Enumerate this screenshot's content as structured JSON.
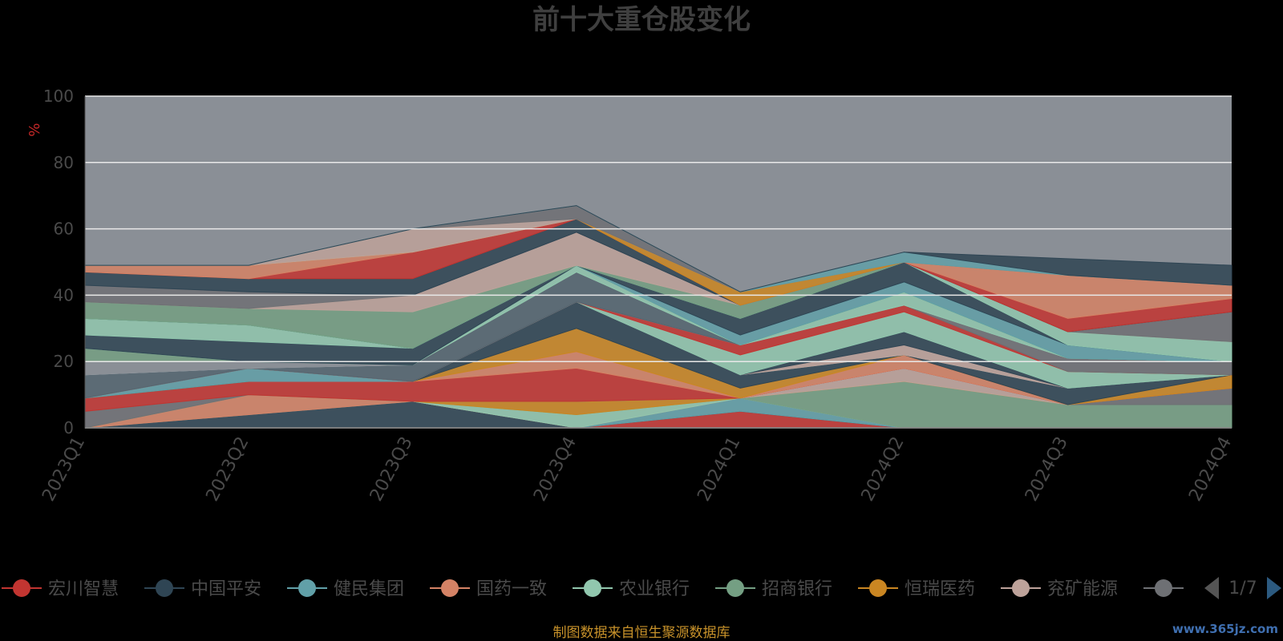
{
  "chart_data": {
    "type": "area",
    "title": "前十大重仓股变化",
    "unit_label": "%",
    "categories": [
      "2023Q1",
      "2023Q2",
      "2023Q3",
      "2023Q4",
      "2024Q1",
      "2024Q2",
      "2024Q3",
      "2024Q4"
    ],
    "ylim": [
      0,
      100
    ],
    "yticks": [
      0,
      20,
      40,
      60,
      80,
      100
    ],
    "grid": true,
    "plot_background": "#8a8f96",
    "legend_position": "bottom",
    "legend_page": "1/7",
    "series": [
      {
        "name": "宏川智慧",
        "color": "#c23531",
        "values": [
          0,
          0,
          0,
          0,
          5,
          0,
          0,
          0
        ]
      },
      {
        "name": "中国平安",
        "color": "#2f4554",
        "values": [
          0,
          4,
          8,
          0,
          0,
          0,
          0,
          0
        ]
      },
      {
        "name": "健民集团",
        "color": "#61a0a8",
        "values": [
          0,
          0,
          0,
          0,
          4,
          0,
          0,
          0
        ]
      },
      {
        "name": "国药一致",
        "color": "#d48265",
        "values": [
          0,
          6,
          0,
          0,
          0,
          0,
          0,
          0
        ]
      },
      {
        "name": "农业银行",
        "color": "#91c7ae",
        "values": [
          0,
          0,
          0,
          4,
          0,
          0,
          0,
          0
        ]
      },
      {
        "name": "招商银行",
        "color": "#749f83",
        "values": [
          0,
          0,
          0,
          0,
          0,
          14,
          7,
          7
        ]
      },
      {
        "name": "恒瑞医药",
        "color": "#ca8622",
        "values": [
          0,
          0,
          0,
          4,
          0,
          0,
          0,
          0
        ]
      },
      {
        "name": "兖矿能源",
        "color": "#bda29a",
        "values": [
          0,
          0,
          0,
          0,
          0,
          4,
          0,
          0
        ]
      },
      {
        "name": "",
        "color": "#6e7074",
        "values": [
          5,
          0,
          0,
          0,
          0,
          0,
          0,
          5
        ]
      },
      {
        "series_role": "other",
        "color": "#c23531",
        "values": [
          4,
          4,
          6,
          10,
          0,
          0,
          0,
          0
        ]
      },
      {
        "series_role": "other",
        "color": "#d48265",
        "values": [
          0,
          0,
          0,
          5,
          0,
          4,
          0,
          0
        ]
      },
      {
        "series_role": "other",
        "color": "#ca8622",
        "values": [
          0,
          0,
          0,
          7,
          3,
          0,
          0,
          4
        ]
      },
      {
        "series_role": "other",
        "color": "#2f4554",
        "values": [
          0,
          0,
          0,
          8,
          4,
          0,
          5,
          0
        ]
      },
      {
        "series_role": "other",
        "color": "#61a0a8",
        "values": [
          0,
          4,
          0,
          0,
          0,
          0,
          0,
          0
        ]
      },
      {
        "series_role": "other",
        "color": "#bda29a",
        "values": [
          0,
          0,
          0,
          0,
          0,
          3,
          0,
          0
        ]
      },
      {
        "series_role": "other",
        "color": "#2f4554",
        "values": [
          0,
          0,
          0,
          0,
          0,
          4,
          0,
          0
        ]
      },
      {
        "series_role": "other",
        "color": "#91c7ae",
        "values": [
          0,
          0,
          0,
          0,
          6,
          6,
          5,
          0
        ]
      },
      {
        "series_role": "other",
        "color": "#c23531",
        "values": [
          0,
          0,
          0,
          0,
          3,
          2,
          0,
          0
        ]
      },
      {
        "series_role": "other",
        "color": "#6e7074",
        "values": [
          0,
          0,
          0,
          0,
          0,
          0,
          4,
          4
        ]
      },
      {
        "series_role": "other",
        "color": "#bda29a",
        "values": [
          0,
          0,
          0,
          0,
          0,
          0,
          0,
          0
        ]
      },
      {
        "series_role": "other",
        "color": "#546570",
        "values": [
          7,
          0,
          5,
          9,
          0,
          0,
          0,
          0
        ]
      },
      {
        "series_role": "other",
        "color": "#c4ccd3",
        "values": [
          0,
          0,
          0,
          0,
          0,
          0,
          0,
          0
        ]
      },
      {
        "series_role": "other",
        "color": "#8a8f96",
        "values": [
          4,
          2,
          0,
          0,
          0,
          0,
          0,
          0
        ]
      },
      {
        "series_role": "other",
        "color": "#749f83",
        "values": [
          4,
          0,
          0,
          0,
          0,
          0,
          0,
          0
        ]
      },
      {
        "series_role": "other",
        "color": "#91c7ae",
        "values": [
          0,
          0,
          0,
          2,
          0,
          4,
          0,
          0
        ]
      },
      {
        "series_role": "other",
        "color": "#2f4554",
        "values": [
          4,
          6,
          5,
          0,
          0,
          0,
          0,
          0
        ]
      },
      {
        "series_role": "other",
        "color": "#91c7ae",
        "values": [
          5,
          5,
          0,
          0,
          0,
          0,
          0,
          0
        ]
      },
      {
        "series_role": "other",
        "color": "#749f83",
        "values": [
          0,
          0,
          0,
          0,
          0,
          0,
          0,
          0
        ]
      },
      {
        "series_role": "other",
        "color": "#61a0a8",
        "values": [
          0,
          0,
          0,
          0,
          3,
          3,
          4,
          0
        ]
      },
      {
        "series_role": "other",
        "color": "#2f4554",
        "values": [
          0,
          0,
          0,
          0,
          5,
          6,
          0,
          0
        ]
      },
      {
        "series_role": "other",
        "color": "#91c7ae",
        "values": [
          0,
          0,
          0,
          0,
          0,
          0,
          4,
          6
        ]
      },
      {
        "series_role": "other",
        "color": "#749f83",
        "values": [
          5,
          5,
          11,
          0,
          4,
          0,
          0,
          0
        ]
      },
      {
        "series_role": "other",
        "color": "#bda29a",
        "values": [
          0,
          0,
          5,
          10,
          0,
          0,
          0,
          0
        ]
      },
      {
        "series_role": "other",
        "color": "#6e7074",
        "values": [
          5,
          5,
          0,
          0,
          0,
          0,
          0,
          9
        ]
      },
      {
        "series_role": "other",
        "color": "#2f4554",
        "values": [
          4,
          4,
          5,
          4,
          0,
          0,
          0,
          0
        ]
      },
      {
        "series_role": "other",
        "color": "#c23531",
        "values": [
          0,
          0,
          8,
          0,
          0,
          0,
          4,
          4
        ]
      },
      {
        "series_role": "other",
        "color": "#d48265",
        "values": [
          2,
          4,
          0,
          0,
          0,
          0,
          13,
          4
        ]
      },
      {
        "series_role": "other",
        "color": "#ca8622",
        "values": [
          0,
          0,
          0,
          0,
          4,
          0,
          0,
          0
        ]
      },
      {
        "series_role": "other",
        "color": "#bda29a",
        "values": [
          0,
          0,
          7,
          0,
          0,
          0,
          0,
          0
        ]
      },
      {
        "series_role": "other",
        "color": "#6e7074",
        "values": [
          0,
          0,
          0,
          4,
          0,
          0,
          0,
          0
        ]
      },
      {
        "series_role": "other",
        "color": "#61a0a8",
        "values": [
          0,
          0,
          0,
          0,
          0,
          3,
          0,
          0
        ]
      },
      {
        "series_role": "other",
        "color": "#2f4554",
        "values": [
          0,
          0,
          0,
          0,
          0,
          0,
          5,
          6
        ]
      }
    ],
    "legend": [
      {
        "name": "宏川智慧",
        "color": "#c23531"
      },
      {
        "name": "中国平安",
        "color": "#2f4554"
      },
      {
        "name": "健民集团",
        "color": "#61a0a8"
      },
      {
        "name": "国药一致",
        "color": "#d48265"
      },
      {
        "name": "农业银行",
        "color": "#91c7ae"
      },
      {
        "name": "招商银行",
        "color": "#749f83"
      },
      {
        "name": "恒瑞医药",
        "color": "#ca8622"
      },
      {
        "name": "兖矿能源",
        "color": "#bda29a"
      },
      {
        "name": "",
        "color": "#6e7074"
      }
    ]
  },
  "source_note": "制图数据来自恒生聚源数据库",
  "watermark": "www.365jz.com"
}
